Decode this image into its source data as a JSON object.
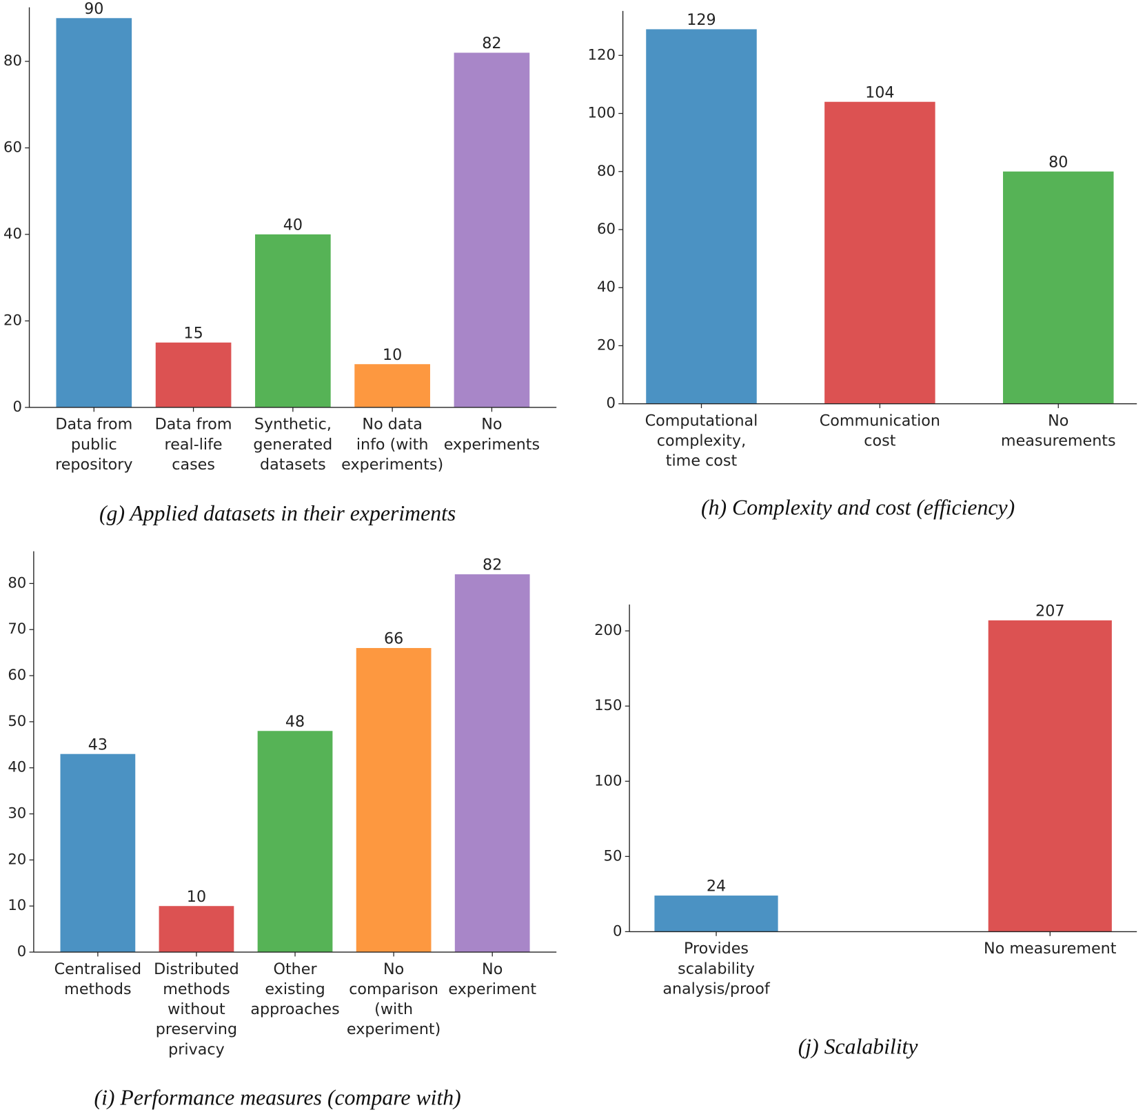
{
  "chart_data": [
    {
      "type": "bar",
      "title": "(g) Applied datasets in their experiments",
      "categories": [
        [
          "Data from",
          "public",
          "repository"
        ],
        [
          "Data from",
          "real-life",
          "cases"
        ],
        [
          "Synthetic,",
          "generated",
          "datasets"
        ],
        [
          "No data",
          "info (with",
          "experiments)"
        ],
        [
          "No",
          "experiments"
        ]
      ],
      "values": [
        90,
        15,
        40,
        10,
        82
      ],
      "colors": [
        "#4b92c3",
        "#dc5252",
        "#56b356",
        "#fd9840",
        "#a886c8"
      ],
      "ylim": [
        0,
        92.5
      ],
      "yticks": [
        0,
        20,
        40,
        60,
        80
      ]
    },
    {
      "type": "bar",
      "title": "(h) Complexity and cost (efficiency)",
      "categories": [
        [
          "Computational",
          "complexity,",
          "time cost"
        ],
        [
          "Communication",
          "cost"
        ],
        [
          "No",
          "measurements"
        ]
      ],
      "values": [
        129,
        104,
        80
      ],
      "colors": [
        "#4b92c3",
        "#dc5252",
        "#56b356"
      ],
      "ylim": [
        0,
        135.3
      ],
      "yticks": [
        0,
        20,
        40,
        60,
        80,
        100,
        120
      ]
    },
    {
      "type": "bar",
      "title": "(i) Performance measures (compare with)",
      "categories": [
        [
          "Centralised",
          "methods"
        ],
        [
          "Distributed",
          "methods",
          "without",
          "preserving",
          "privacy"
        ],
        [
          "Other",
          "existing",
          "approaches"
        ],
        [
          "No",
          "comparison",
          "(with",
          "experiment)"
        ],
        [
          "No",
          "experiment"
        ]
      ],
      "values": [
        43,
        10,
        48,
        66,
        82
      ],
      "colors": [
        "#4b92c3",
        "#dc5252",
        "#56b356",
        "#fd9840",
        "#a886c8"
      ],
      "ylim": [
        0,
        87
      ],
      "yticks": [
        0,
        10,
        20,
        30,
        40,
        50,
        60,
        70,
        80
      ]
    },
    {
      "type": "bar",
      "title": "(j) Scalability",
      "categories": [
        [
          "Provides",
          "scalability",
          "analysis/proof"
        ],
        [
          "No measurement"
        ]
      ],
      "values": [
        24,
        207
      ],
      "colors": [
        "#4b92c3",
        "#dc5252"
      ],
      "ylim": [
        0,
        217.5
      ],
      "yticks": [
        0,
        50,
        100,
        150,
        200
      ]
    }
  ]
}
